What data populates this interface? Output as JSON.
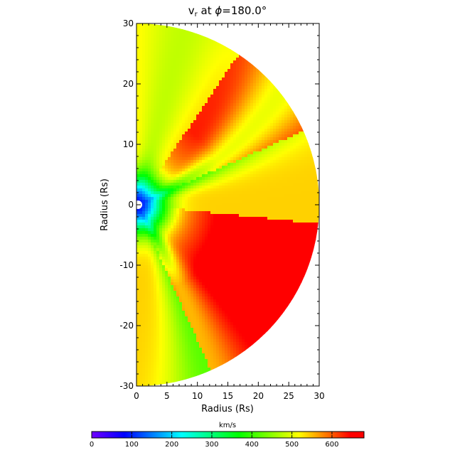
{
  "chart_data": {
    "type": "heatmap",
    "title": {
      "var": "v",
      "sub": "r",
      "mid": " at ",
      "phi": "ϕ",
      "value": "=180.0°"
    },
    "xlabel": "Radius (Rs)",
    "ylabel": "Radius (Rs)",
    "xlim": [
      0,
      30
    ],
    "ylim": [
      -30,
      30
    ],
    "x_ticks": [
      0,
      5,
      10,
      15,
      20,
      25,
      30
    ],
    "y_ticks": [
      -30,
      -20,
      -10,
      0,
      10,
      20,
      30
    ],
    "domain": "half-disk, radius 0 to 30 Rs, right half-plane",
    "inner_boundary_radius": 1,
    "colorbar": {
      "label": "km/s",
      "min": 0,
      "max": 680,
      "ticks": [
        0,
        100,
        200,
        300,
        400,
        500,
        600
      ],
      "colormap": [
        "#7000ff",
        "#0000ff",
        "#00ffff",
        "#00ff00",
        "#ffff00",
        "#ff0000"
      ]
    },
    "field_structure": {
      "background_speed_kms": 540,
      "fast_stream_speed_kms": 660,
      "slow_stream_speed_kms": 420,
      "core_speed_kms": 80,
      "streams": [
        {
          "name": "upper fast wedge",
          "angle_range_deg": [
            22,
            55
          ],
          "speed_kms": 660
        },
        {
          "name": "lower fast wedge",
          "angle_range_deg": [
            -65,
            -5
          ],
          "speed_kms": 680
        },
        {
          "name": "slow band upper",
          "angle_deg": 20,
          "speed_kms": 420
        },
        {
          "name": "slow band lower",
          "angle_deg": -58,
          "speed_kms": 430
        }
      ]
    }
  }
}
